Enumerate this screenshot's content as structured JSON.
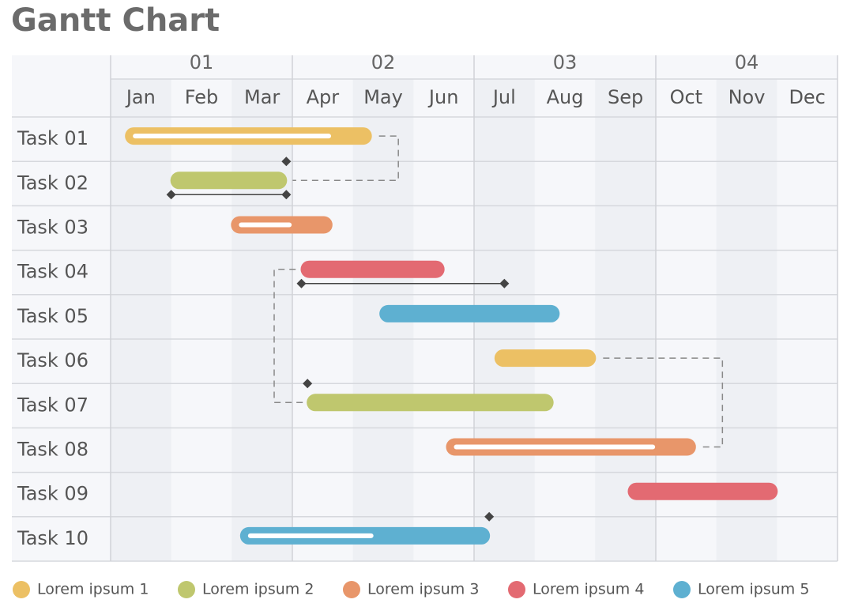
{
  "chart_data": {
    "type": "gantt",
    "title": "Gantt Chart",
    "xlim": [
      0,
      12
    ],
    "quarters": [
      "01",
      "02",
      "03",
      "04"
    ],
    "months": [
      "Jan",
      "Feb",
      "Mar",
      "Apr",
      "May",
      "Jun",
      "Jul",
      "Aug",
      "Sep",
      "Oct",
      "Nov",
      "Dec"
    ],
    "series": [
      {
        "name": "Lorem ipsum 1",
        "color": "#ecc064"
      },
      {
        "name": "Lorem ipsum 2",
        "color": "#bfc76e"
      },
      {
        "name": "Lorem ipsum 3",
        "color": "#e8966a"
      },
      {
        "name": "Lorem ipsum 4",
        "color": "#e36a72"
      },
      {
        "name": "Lorem ipsum 5",
        "color": "#5eb0d1"
      }
    ],
    "tasks": [
      {
        "name": "Task 01",
        "series": 0,
        "start": 0.25,
        "end": 4.3,
        "progress": 3.6
      },
      {
        "name": "Task 02",
        "series": 1,
        "start": 1.0,
        "end": 2.9,
        "milestone": 2.9,
        "range": [
          1.0,
          2.9
        ]
      },
      {
        "name": "Task 03",
        "series": 2,
        "start": 2.0,
        "end": 3.65,
        "progress": 2.95
      },
      {
        "name": "Task 04",
        "series": 3,
        "start": 3.15,
        "end": 5.5,
        "range": [
          3.15,
          6.5
        ]
      },
      {
        "name": "Task 05",
        "series": 4,
        "start": 4.45,
        "end": 7.4
      },
      {
        "name": "Task 06",
        "series": 0,
        "start": 6.35,
        "end": 8.0
      },
      {
        "name": "Task 07",
        "series": 1,
        "start": 3.25,
        "end": 7.3,
        "milestone": 3.25
      },
      {
        "name": "Task 08",
        "series": 2,
        "start": 5.55,
        "end": 9.65,
        "progress": 8.95
      },
      {
        "name": "Task 09",
        "series": 3,
        "start": 8.55,
        "end": 11.0
      },
      {
        "name": "Task 10",
        "series": 4,
        "start": 2.15,
        "end": 6.25,
        "progress": 4.3,
        "milestone": 6.25
      }
    ],
    "links": [
      {
        "from": 0,
        "to": 1,
        "kind": "end-to-end"
      },
      {
        "from": 6,
        "to": 3,
        "kind": "start-to-start"
      },
      {
        "from": 5,
        "to": 7,
        "kind": "end-to-end"
      }
    ]
  }
}
